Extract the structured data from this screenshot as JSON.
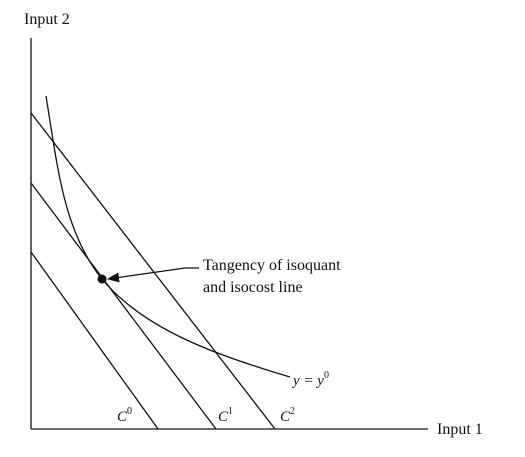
{
  "axes": {
    "x_label": "Input 1",
    "y_label": "Input 2"
  },
  "isocost_lines": [
    {
      "label": "C",
      "superscript": "0"
    },
    {
      "label": "C",
      "superscript": "1"
    },
    {
      "label": "C",
      "superscript": "2"
    }
  ],
  "isoquant": {
    "label_text": "y = y",
    "label_superscript": "0"
  },
  "tangency": {
    "annotation_line1": "Tangency of isoquant",
    "annotation_line2": "and isocost line"
  }
}
